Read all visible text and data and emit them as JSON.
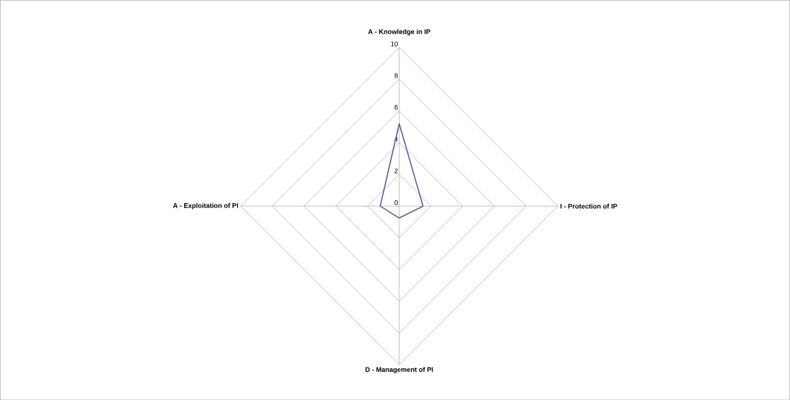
{
  "chart_data": {
    "type": "radar",
    "categories": [
      "A - Knowledge in IP",
      "I - Protection of IP",
      "D - Management of PI",
      "A - Exploitation of PI"
    ],
    "series": [
      {
        "color": "#5b5b9b",
        "values": [
          5.2,
          1.5,
          0.75,
          1.2
        ]
      }
    ],
    "ylim": [
      0,
      10
    ],
    "yticks": [
      0,
      2,
      4,
      6,
      8,
      10
    ],
    "grid": true
  }
}
